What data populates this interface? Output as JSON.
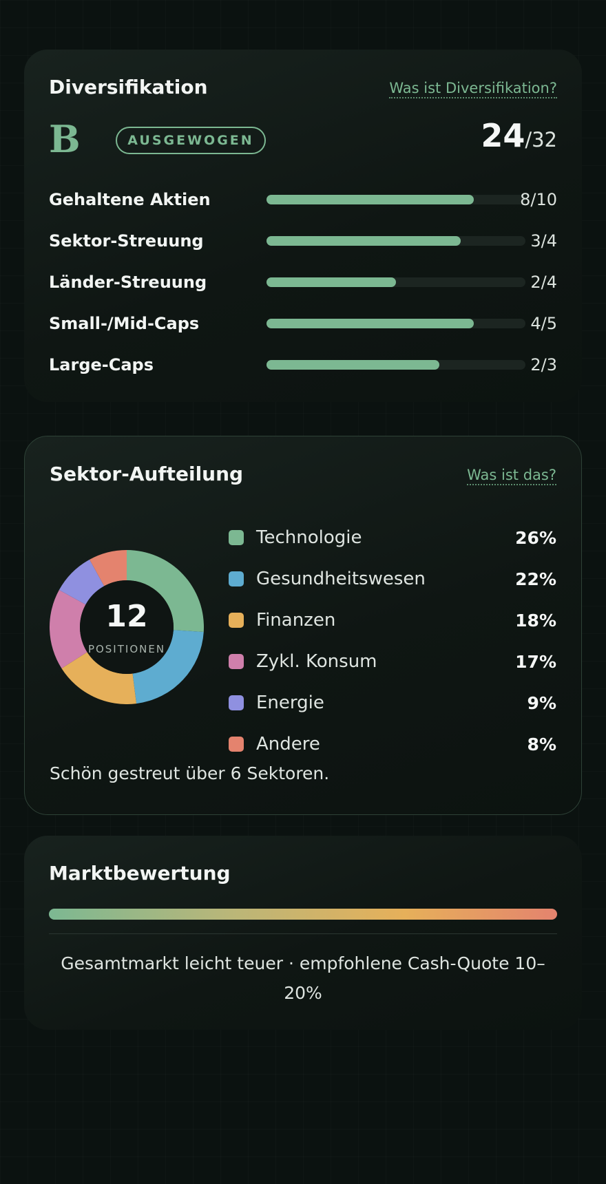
{
  "diversification": {
    "title": "Diversifikation",
    "help_link": "Was ist Diversifikation?",
    "grade": "B",
    "badge": "AUSGEWOGEN",
    "score": "24",
    "score_max": "/32",
    "metrics": [
      {
        "label": "Gehaltene Aktien",
        "value": "8/10",
        "fraction": 0.8
      },
      {
        "label": "Sektor-Streuung",
        "value": "3/4",
        "fraction": 0.75
      },
      {
        "label": "Länder-Streuung",
        "value": "2/4",
        "fraction": 0.5
      },
      {
        "label": "Small-/Mid-Caps",
        "value": "4/5",
        "fraction": 0.8
      },
      {
        "label": "Large-Caps",
        "value": "2/3",
        "fraction": 0.667
      }
    ],
    "colors": {
      "accent": "#7cb892",
      "track": "#1c2521"
    }
  },
  "sectors": {
    "title": "Sektor-Aufteilung",
    "help_link": "Was ist das?",
    "positions_count": "12",
    "positions_label": "POSITIONEN",
    "items": [
      {
        "name": "Technologie",
        "pct_label": "26%",
        "share": 26,
        "color": "#7cb892"
      },
      {
        "name": "Gesundheitswesen",
        "pct_label": "22%",
        "share": 22,
        "color": "#5eacd0"
      },
      {
        "name": "Finanzen",
        "pct_label": "18%",
        "share": 18,
        "color": "#e6b05a"
      },
      {
        "name": "Zykl. Konsum",
        "pct_label": "17%",
        "share": 17,
        "color": "#cf7fab"
      },
      {
        "name": "Energie",
        "pct_label": "9%",
        "share": 9,
        "color": "#8f90e0"
      },
      {
        "name": "Andere",
        "pct_label": "8%",
        "share": 8,
        "color": "#e4836e"
      }
    ],
    "note": "Schön gestreut über 6 Sektoren."
  },
  "market": {
    "title": "Marktbewertung",
    "text": "Gesamtmarkt leicht teuer · empfohlene Cash-Quote 10–20%",
    "gradient_colors": [
      "#7cb892",
      "#e6b05a",
      "#e4836e"
    ]
  }
}
